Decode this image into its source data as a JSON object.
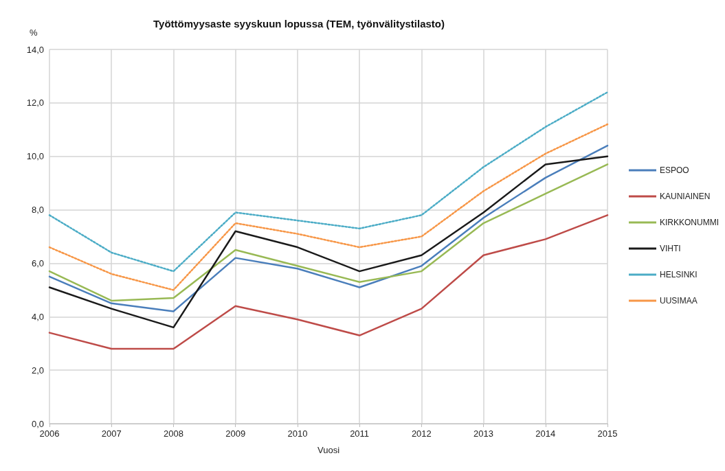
{
  "chart_data": {
    "type": "line",
    "title": "Työttömyysaste syyskuun lopussa (TEM, työnvälitystilasto)",
    "ylabel": "%",
    "xlabel": "Vuosi",
    "categories": [
      "2006",
      "2007",
      "2008",
      "2009",
      "2010",
      "2011",
      "2012",
      "2013",
      "2014",
      "2015"
    ],
    "series": [
      {
        "name": "ESPOO",
        "color": "#4a7ebb",
        "line_style": "solid",
        "values": [
          5.5,
          4.5,
          4.2,
          6.2,
          5.8,
          5.1,
          5.9,
          7.7,
          9.2,
          10.4
        ]
      },
      {
        "name": "KAUNIAINEN",
        "color": "#be4b48",
        "line_style": "solid",
        "values": [
          3.4,
          2.8,
          2.8,
          4.4,
          3.9,
          3.3,
          4.3,
          6.3,
          6.9,
          7.8
        ]
      },
      {
        "name": "KIRKKONUMMI",
        "color": "#98b954",
        "line_style": "solid",
        "values": [
          5.7,
          4.6,
          4.7,
          6.5,
          5.9,
          5.3,
          5.7,
          7.5,
          8.6,
          9.7
        ]
      },
      {
        "name": "VIHTI",
        "color": "#1a1a1a",
        "line_style": "solid",
        "values": [
          5.1,
          4.3,
          3.6,
          7.2,
          6.6,
          5.7,
          6.3,
          7.9,
          9.7,
          10.0
        ]
      },
      {
        "name": "HELSINKI",
        "color": "#4bacc6",
        "line_style": "dotted",
        "values": [
          7.8,
          6.4,
          5.7,
          7.9,
          7.6,
          7.3,
          7.8,
          9.6,
          11.1,
          12.4
        ]
      },
      {
        "name": "UUSIMAA",
        "color": "#f79646",
        "line_style": "dotted",
        "values": [
          6.6,
          5.6,
          5.0,
          7.5,
          7.1,
          6.6,
          7.0,
          8.7,
          10.1,
          11.2
        ]
      }
    ],
    "ylim": [
      0,
      14
    ],
    "yticks": [
      {
        "value": 0,
        "label": "0,0"
      },
      {
        "value": 2,
        "label": "2,0"
      },
      {
        "value": 4,
        "label": "4,0"
      },
      {
        "value": 6,
        "label": "6,0"
      },
      {
        "value": 8,
        "label": "8,0"
      },
      {
        "value": 10,
        "label": "10,0"
      },
      {
        "value": 12,
        "label": "12,0"
      },
      {
        "value": 14,
        "label": "14,0"
      }
    ],
    "grid": true,
    "legend": "right",
    "marker": "none"
  }
}
